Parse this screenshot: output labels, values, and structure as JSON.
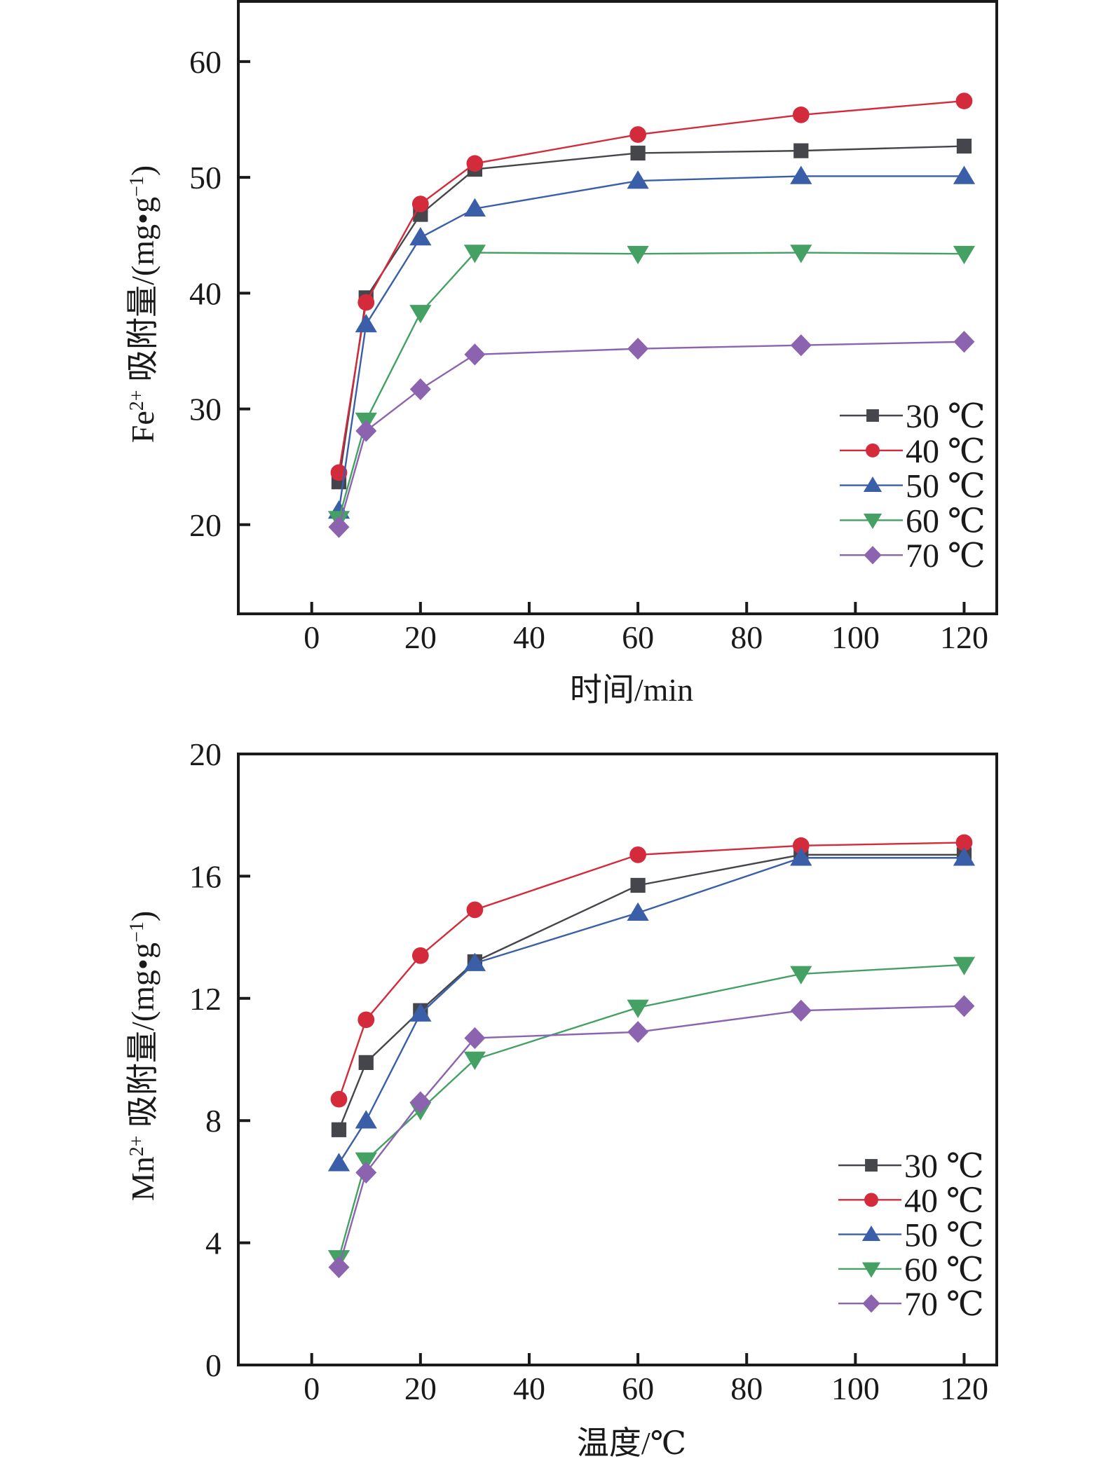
{
  "chart_data": [
    {
      "type": "line",
      "id": "fe",
      "title": "",
      "xlabel": "时间/min",
      "ylabel": {
        "prefix": "Fe",
        "sup": "2+",
        "main": " 吸附量/(mg•g",
        "sup2": "−1",
        "suffix": ")"
      },
      "xlim": [
        -13.5,
        126
      ],
      "ylim": [
        12.3,
        65.2
      ],
      "xticks": [
        0,
        20,
        40,
        60,
        80,
        100,
        120
      ],
      "yticks": [
        20,
        30,
        40,
        50,
        60
      ],
      "x": [
        5,
        10,
        20,
        30,
        60,
        90,
        120
      ],
      "grid": false,
      "legend_position": "bottom-right",
      "series": [
        {
          "name": "30 ℃",
          "marker": "square",
          "color": "#45464b",
          "values": [
            23.7,
            39.6,
            46.8,
            50.7,
            52.1,
            52.3,
            52.7
          ]
        },
        {
          "name": "40 ℃",
          "marker": "circle",
          "color": "#d42b3c",
          "values": [
            24.5,
            39.2,
            47.7,
            51.2,
            53.7,
            55.4,
            56.6
          ]
        },
        {
          "name": "50 ℃",
          "marker": "triangle-up",
          "color": "#3a5fa8",
          "values": [
            21.2,
            37.3,
            44.8,
            47.3,
            49.7,
            50.1,
            50.1
          ]
        },
        {
          "name": "60 ℃",
          "marker": "triangle-down",
          "color": "#45a064",
          "values": [
            20.5,
            29.0,
            38.3,
            43.5,
            43.4,
            43.5,
            43.4
          ]
        },
        {
          "name": "70 ℃",
          "marker": "diamond",
          "color": "#8c63ae",
          "values": [
            19.8,
            28.1,
            31.7,
            34.7,
            35.2,
            35.5,
            35.8
          ]
        }
      ]
    },
    {
      "type": "line",
      "id": "mn",
      "title": "",
      "xlabel": "温度/℃",
      "ylabel": {
        "prefix": "Mn",
        "sup": "2+",
        "main": " 吸附量/(mg•g",
        "sup2": "−1",
        "suffix": ")"
      },
      "xlim": [
        -13.5,
        126
      ],
      "ylim": [
        0,
        20
      ],
      "xticks": [
        0,
        20,
        40,
        60,
        80,
        100,
        120
      ],
      "yticks": [
        0,
        4,
        8,
        12,
        16,
        20
      ],
      "x": [
        5,
        10,
        20,
        30,
        60,
        90,
        120
      ],
      "grid": false,
      "legend_position": "bottom-right",
      "series": [
        {
          "name": "30 ℃",
          "marker": "square",
          "color": "#45464b",
          "values": [
            7.7,
            9.9,
            11.6,
            13.2,
            15.7,
            16.7,
            16.7
          ]
        },
        {
          "name": "40 ℃",
          "marker": "circle",
          "color": "#d42b3c",
          "values": [
            8.7,
            11.3,
            13.4,
            14.9,
            16.7,
            17.0,
            17.1
          ]
        },
        {
          "name": "50 ℃",
          "marker": "triangle-up",
          "color": "#3a5fa8",
          "values": [
            6.6,
            8.0,
            11.5,
            13.15,
            14.8,
            16.6,
            16.6
          ]
        },
        {
          "name": "60 ℃",
          "marker": "triangle-down",
          "color": "#45a064",
          "values": [
            3.5,
            6.7,
            8.35,
            10.0,
            11.7,
            12.8,
            13.1
          ]
        },
        {
          "name": "70 ℃",
          "marker": "diamond",
          "color": "#8c63ae",
          "values": [
            3.2,
            6.3,
            8.6,
            10.7,
            10.9,
            11.6,
            11.75
          ]
        }
      ]
    }
  ]
}
